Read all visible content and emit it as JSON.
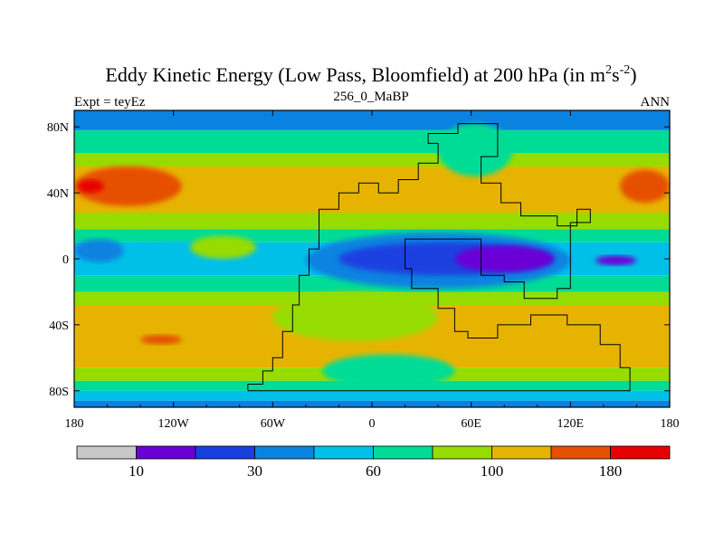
{
  "chart_data": {
    "type": "heatmap",
    "title_main": "Eddy Kinetic Energy (Low Pass, Bloomfield) at 200 hPa (in m",
    "title_sup1": "2",
    "title_mid": "s",
    "title_sup2": "-2",
    "title_end": ")",
    "subtitle": "256_0_MaBP",
    "left_label": "Expt = teyEz",
    "right_label": "ANN",
    "x_tick_labels": [
      "180",
      "120W",
      "60W",
      "0",
      "60E",
      "120E",
      "180"
    ],
    "x_tick_values": [
      -180,
      -120,
      -60,
      0,
      60,
      120,
      180
    ],
    "y_tick_labels": [
      "80N",
      "40N",
      "0",
      "40S",
      "80S"
    ],
    "y_tick_values": [
      80,
      40,
      0,
      -40,
      -80
    ],
    "xlim": [
      -180,
      180
    ],
    "ylim": [
      -90,
      90
    ],
    "colorbar": {
      "levels": [
        10,
        20,
        30,
        45,
        60,
        80,
        100,
        140,
        180
      ],
      "labels": [
        {
          "text": "10",
          "after_bin": 1
        },
        {
          "text": "30",
          "after_bin": 3
        },
        {
          "text": "60",
          "after_bin": 5
        },
        {
          "text": "100",
          "after_bin": 7
        },
        {
          "text": "180",
          "after_bin": 9
        }
      ],
      "colors": [
        "#c8c8c8",
        "#6a00d6",
        "#1a3fe0",
        "#0a82e0",
        "#00c0e8",
        "#00dc96",
        "#96dc00",
        "#e6b400",
        "#e65000",
        "#e60000"
      ]
    },
    "bands": [
      {
        "lat_min": 78,
        "lat_max": 90,
        "level_index": 3
      },
      {
        "lat_min": 64,
        "lat_max": 78,
        "level_index": 5
      },
      {
        "lat_min": 56,
        "lat_max": 64,
        "level_index": 6
      },
      {
        "lat_min": 28,
        "lat_max": 56,
        "level_index": 7
      },
      {
        "lat_min": 18,
        "lat_max": 28,
        "level_index": 6
      },
      {
        "lat_min": 10,
        "lat_max": 18,
        "level_index": 5
      },
      {
        "lat_min": -10,
        "lat_max": 10,
        "level_index": 4
      },
      {
        "lat_min": -20,
        "lat_max": -10,
        "level_index": 5
      },
      {
        "lat_min": -28,
        "lat_max": -20,
        "level_index": 6
      },
      {
        "lat_min": -66,
        "lat_max": -28,
        "level_index": 7
      },
      {
        "lat_min": -74,
        "lat_max": -66,
        "level_index": 6
      },
      {
        "lat_min": -80,
        "lat_max": -74,
        "level_index": 5
      },
      {
        "lat_min": -86,
        "lat_max": -80,
        "level_index": 4
      },
      {
        "lat_min": -90,
        "lat_max": -86,
        "level_index": 3
      }
    ],
    "blobs": [
      {
        "name": "nh-jet-max-west",
        "lon": [
          -180,
          -115
        ],
        "lat": [
          32,
          56
        ],
        "level_index": 8
      },
      {
        "name": "nh-jet-max-east",
        "lon": [
          150,
          180
        ],
        "lat": [
          34,
          54
        ],
        "level_index": 8
      },
      {
        "name": "nh-jet-peak",
        "lon": [
          -178,
          -162
        ],
        "lat": [
          40,
          48
        ],
        "level_index": 9
      },
      {
        "name": "arctic-green",
        "lon": [
          40,
          85
        ],
        "lat": [
          50,
          82
        ],
        "level_index": 5
      },
      {
        "name": "tropical-blue-belt",
        "lon": [
          -40,
          120
        ],
        "lat": [
          -18,
          16
        ],
        "level_index": 3
      },
      {
        "name": "tropical-deep-blue",
        "lon": [
          -20,
          110
        ],
        "lat": [
          -10,
          10
        ],
        "level_index": 2
      },
      {
        "name": "tropical-min-core",
        "lon": [
          50,
          110
        ],
        "lat": [
          -8,
          8
        ],
        "level_index": 1
      },
      {
        "name": "pacific-min-spot",
        "lon": [
          135,
          160
        ],
        "lat": [
          -4,
          2
        ],
        "level_index": 1
      },
      {
        "name": "atlantic-light-blue",
        "lon": [
          -180,
          -55
        ],
        "lat": [
          -6,
          10
        ],
        "level_index": 4
      },
      {
        "name": "east-pacific-yellow-green",
        "lon": [
          -110,
          -70
        ],
        "lat": [
          0,
          14
        ],
        "level_index": 6
      },
      {
        "name": "west-tropics-blue",
        "lon": [
          -180,
          -150
        ],
        "lat": [
          -2,
          12
        ],
        "level_index": 3
      },
      {
        "name": "sh-green-tongue",
        "lon": [
          -60,
          40
        ],
        "lat": [
          -50,
          -20
        ],
        "level_index": 6
      },
      {
        "name": "sh-cyan-pool",
        "lon": [
          -30,
          50
        ],
        "lat": [
          -78,
          -58
        ],
        "level_index": 5
      },
      {
        "name": "sh-jet-spot",
        "lon": [
          -140,
          -115
        ],
        "lat": [
          -52,
          -46
        ],
        "level_index": 8
      }
    ],
    "continent_outline": [
      [
        -75,
        -80
      ],
      [
        -75,
        -76
      ],
      [
        -66,
        -76
      ],
      [
        -66,
        -68
      ],
      [
        -60,
        -68
      ],
      [
        -60,
        -60
      ],
      [
        -54,
        -60
      ],
      [
        -54,
        -44
      ],
      [
        -48,
        -44
      ],
      [
        -48,
        -28
      ],
      [
        -44,
        -28
      ],
      [
        -44,
        -10
      ],
      [
        -38,
        -10
      ],
      [
        -38,
        6
      ],
      [
        -32,
        6
      ],
      [
        -32,
        30
      ],
      [
        -20,
        30
      ],
      [
        -20,
        40
      ],
      [
        -8,
        40
      ],
      [
        -8,
        46
      ],
      [
        4,
        46
      ],
      [
        4,
        40
      ],
      [
        16,
        40
      ],
      [
        16,
        48
      ],
      [
        28,
        48
      ],
      [
        28,
        58
      ],
      [
        40,
        58
      ],
      [
        40,
        70
      ],
      [
        34,
        70
      ],
      [
        34,
        76
      ],
      [
        52,
        76
      ],
      [
        52,
        82
      ],
      [
        76,
        82
      ],
      [
        76,
        62
      ],
      [
        66,
        62
      ],
      [
        66,
        46
      ],
      [
        78,
        46
      ],
      [
        78,
        34
      ],
      [
        90,
        34
      ],
      [
        90,
        26
      ],
      [
        112,
        26
      ],
      [
        112,
        20
      ],
      [
        124,
        20
      ],
      [
        124,
        30
      ],
      [
        132,
        30
      ],
      [
        132,
        22
      ],
      [
        120,
        22
      ],
      [
        120,
        -18
      ],
      [
        112,
        -18
      ],
      [
        112,
        -24
      ],
      [
        92,
        -24
      ],
      [
        92,
        -14
      ],
      [
        80,
        -14
      ],
      [
        80,
        -10
      ],
      [
        66,
        -10
      ],
      [
        66,
        12
      ],
      [
        20,
        12
      ],
      [
        20,
        -6
      ],
      [
        24,
        -6
      ],
      [
        24,
        -18
      ],
      [
        40,
        -18
      ],
      [
        40,
        -30
      ],
      [
        50,
        -30
      ],
      [
        50,
        -44
      ],
      [
        58,
        -44
      ],
      [
        58,
        -48
      ],
      [
        76,
        -48
      ],
      [
        76,
        -40
      ],
      [
        96,
        -40
      ],
      [
        96,
        -34
      ],
      [
        118,
        -34
      ],
      [
        118,
        -40
      ],
      [
        138,
        -40
      ],
      [
        138,
        -52
      ],
      [
        150,
        -52
      ],
      [
        150,
        -66
      ],
      [
        156,
        -66
      ],
      [
        156,
        -80
      ],
      [
        -75,
        -80
      ]
    ]
  }
}
